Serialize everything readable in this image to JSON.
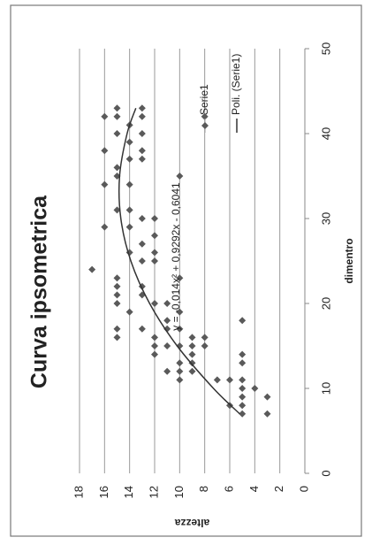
{
  "chart_data": {
    "type": "scatter",
    "title": "Curva ipsometrica",
    "x_label": "dimentro",
    "y_label": "altezza",
    "annotation": "y = -0,014x² + 0,9292x - 0,6041",
    "xlim": [
      0,
      50
    ],
    "xticks": [
      0,
      10,
      20,
      30,
      40,
      50
    ],
    "ylim": [
      0,
      18
    ],
    "yticks": [
      0,
      2,
      4,
      6,
      8,
      10,
      12,
      14,
      16,
      18
    ],
    "grid": true,
    "legend": "right",
    "series": [
      {
        "name": "Serie1",
        "color": "#5a5a5a",
        "marker": "diamond",
        "x": [
          7,
          7,
          8,
          9,
          9,
          10,
          10,
          11,
          11,
          11,
          8,
          11,
          12,
          12,
          13,
          13,
          14,
          14,
          13,
          15,
          15,
          15,
          15,
          16,
          16,
          17,
          17,
          18,
          18,
          19,
          14,
          12,
          16,
          15,
          20,
          20,
          21,
          22,
          22,
          23,
          23,
          24,
          25,
          25,
          26,
          26,
          27,
          28,
          29,
          29,
          30,
          30,
          31,
          31,
          34,
          34,
          35,
          35,
          36,
          37,
          37,
          38,
          38,
          39,
          40,
          40,
          42,
          42,
          42,
          42,
          43,
          43,
          41,
          17,
          16,
          17,
          19,
          20,
          21
        ],
        "values": [
          5,
          3,
          5,
          5,
          3,
          5,
          4,
          5,
          6,
          7,
          6,
          10,
          10,
          9,
          10,
          9,
          9,
          5,
          5,
          10,
          11,
          12,
          9,
          9,
          8,
          10,
          11,
          11,
          5,
          10,
          12,
          11,
          12,
          8,
          11,
          12,
          13,
          13,
          15,
          15,
          10,
          17,
          13,
          12,
          12,
          14,
          13,
          12,
          14,
          16,
          12,
          13,
          15,
          14,
          16,
          14,
          15,
          10,
          15,
          14,
          13,
          16,
          13,
          14,
          13,
          15,
          16,
          15,
          13,
          8,
          15,
          13,
          14,
          15,
          15,
          13,
          14,
          15,
          15
        ]
      },
      {
        "name": "Poli. (Serie1)",
        "color": "#333333",
        "marker": "line",
        "x": [
          7,
          10,
          15,
          20,
          25,
          30,
          35,
          40,
          43
        ],
        "values": [
          5.2,
          7.3,
          10.2,
          12.4,
          13.9,
          14.7,
          14.8,
          14.2,
          13.5
        ]
      }
    ]
  }
}
